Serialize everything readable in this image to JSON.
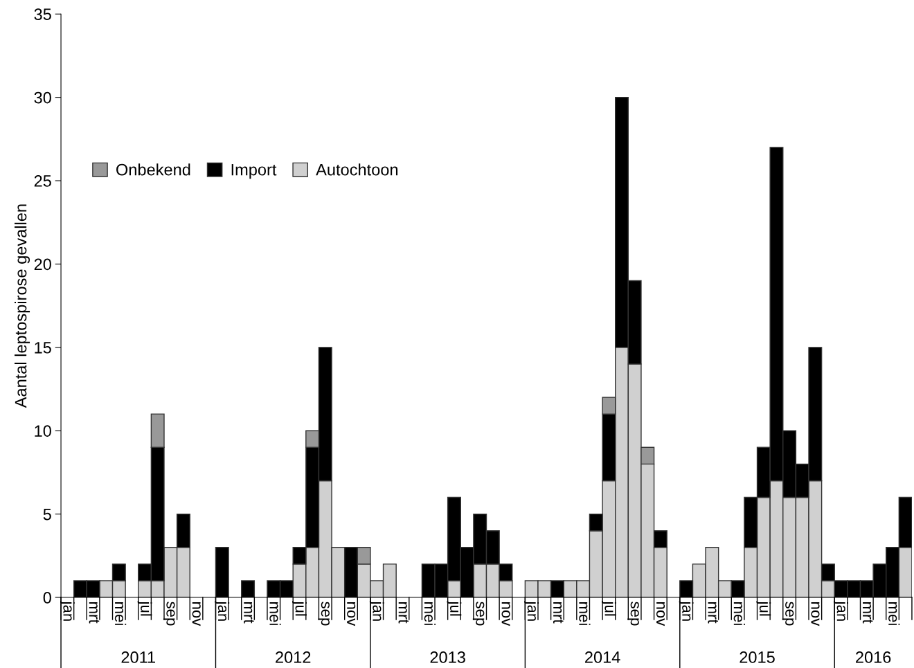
{
  "chart_data": {
    "type": "bar",
    "stacked": true,
    "ylabel": "Aantal leptospirose gevallen",
    "categories": [
      "jan",
      null,
      "mrt",
      null,
      "mei",
      null,
      "jul",
      null,
      "sep",
      null,
      "nov",
      null,
      "jan",
      null,
      "mrt",
      null,
      "mei",
      null,
      "jul",
      null,
      "sep",
      null,
      "nov",
      null,
      "jan",
      null,
      "mrt",
      null,
      "mei",
      null,
      "jul",
      null,
      "sep",
      null,
      "nov",
      null,
      "jan",
      null,
      "mrt",
      null,
      "mei",
      null,
      "jul",
      null,
      "sep",
      null,
      "nov",
      null,
      "jan",
      null,
      "mrt",
      null,
      "mei",
      null,
      "jul",
      null,
      "sep",
      null,
      "nov",
      null,
      "jan",
      null,
      "mrt",
      null,
      "mei",
      null
    ],
    "series": [
      {
        "name": "Autochtoon",
        "color": "#d0d0d0",
        "values": [
          0,
          0,
          0,
          1,
          1,
          0,
          1,
          1,
          3,
          3,
          0,
          0,
          0,
          0,
          0,
          0,
          0,
          0,
          2,
          3,
          7,
          3,
          0,
          2,
          1,
          2,
          0,
          0,
          0,
          0,
          1,
          0,
          2,
          2,
          1,
          0,
          1,
          1,
          0,
          1,
          1,
          4,
          7,
          15,
          14,
          8,
          3,
          0,
          0,
          2,
          3,
          1,
          0,
          3,
          6,
          7,
          6,
          6,
          7,
          1,
          0,
          0,
          0,
          0,
          0,
          3
        ]
      },
      {
        "name": "Import",
        "color": "#000000",
        "values": [
          0,
          1,
          1,
          0,
          1,
          0,
          1,
          8,
          0,
          2,
          0,
          0,
          3,
          0,
          1,
          0,
          1,
          1,
          1,
          6,
          8,
          0,
          3,
          0,
          0,
          0,
          0,
          0,
          2,
          2,
          5,
          3,
          3,
          2,
          1,
          0,
          0,
          0,
          1,
          0,
          0,
          1,
          4,
          15,
          5,
          0,
          1,
          0,
          1,
          0,
          0,
          0,
          1,
          3,
          3,
          20,
          4,
          2,
          8,
          1,
          1,
          1,
          1,
          2,
          3,
          3
        ]
      },
      {
        "name": "Onbekend",
        "color": "#999999",
        "values": [
          0,
          0,
          0,
          0,
          0,
          0,
          0,
          2,
          0,
          0,
          0,
          0,
          0,
          0,
          0,
          0,
          0,
          0,
          0,
          1,
          0,
          0,
          0,
          1,
          0,
          0,
          0,
          0,
          0,
          0,
          0,
          0,
          0,
          0,
          0,
          0,
          0,
          0,
          0,
          0,
          0,
          0,
          1,
          0,
          0,
          1,
          0,
          0,
          0,
          0,
          0,
          0,
          0,
          0,
          0,
          0,
          0,
          0,
          0,
          0,
          0,
          0,
          0,
          0,
          0,
          0
        ]
      }
    ],
    "annotations": [
      "2011",
      "2012",
      "2013",
      "2014",
      "2015",
      "2016"
    ],
    "ylim": [
      0,
      35
    ],
    "yticks": [
      0,
      5,
      10,
      15,
      20,
      25,
      30,
      35
    ],
    "legend": "top left",
    "grid": false
  }
}
